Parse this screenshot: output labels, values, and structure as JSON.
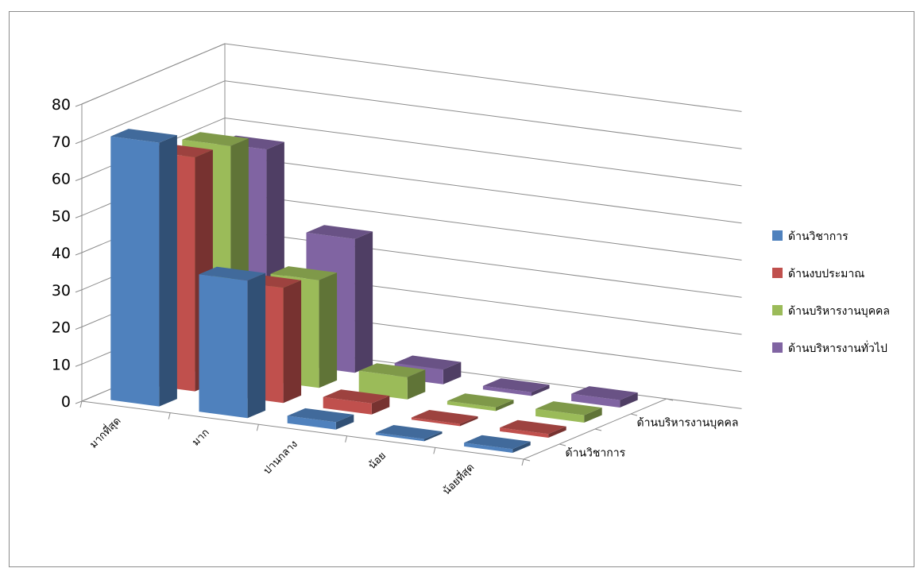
{
  "chart_data": {
    "type": "bar",
    "categories": [
      "มากที่สุด",
      "มาก",
      "ปานกลาง",
      "น้อย",
      "น้อยที่สุด"
    ],
    "depth_labels": [
      "ด้านวิชาการ",
      "ด้านบริหารงานบุคคล"
    ],
    "ylim": [
      0,
      80
    ],
    "yticks": [
      0,
      10,
      20,
      30,
      40,
      50,
      60,
      70,
      80
    ],
    "series": [
      {
        "name": "ด้านวิชาการ",
        "values": [
          71,
          37,
          2,
          0,
          1
        ],
        "color": "#4f81bd"
      },
      {
        "name": "ด้านงบประมาณ",
        "values": [
          63,
          31,
          3,
          0,
          1
        ],
        "color": "#c0504d"
      },
      {
        "name": "ด้านบริหารงานบุคคล",
        "values": [
          62,
          29,
          6,
          1,
          2
        ],
        "color": "#9bbb59"
      },
      {
        "name": "ด้านบริหารงานทั่วไป",
        "values": [
          57,
          36,
          4,
          1,
          2
        ],
        "color": "#8064a2"
      }
    ],
    "legend_position": "right",
    "grid": true
  }
}
